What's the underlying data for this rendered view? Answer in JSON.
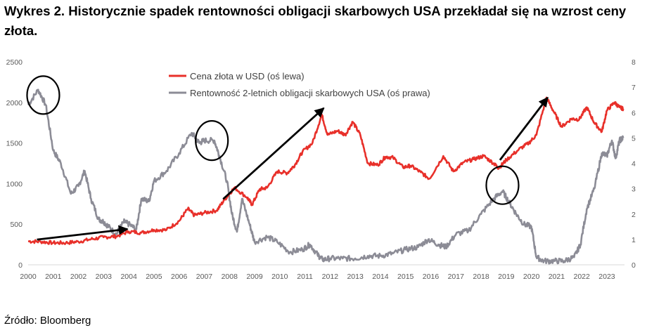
{
  "title": "Wykres 2. Historycznie spadek rentowności obligacji skarbowych USA przekładał się na wzrost ceny złota.",
  "source": "Źródło: Bloomberg",
  "colors": {
    "gold": "#e8302a",
    "yield": "#8c8c96",
    "annotation": "#000000"
  },
  "chart_data": {
    "type": "line",
    "x_ticks": [
      "2000",
      "2001",
      "2002",
      "2003",
      "2004",
      "2005",
      "2006",
      "2007",
      "2008",
      "2009",
      "2010",
      "2011",
      "2012",
      "2013",
      "2014",
      "2015",
      "2016",
      "2017",
      "2018",
      "2019",
      "2020",
      "2021",
      "2022",
      "2023"
    ],
    "y_left": {
      "ticks": [
        "0",
        "500",
        "1000",
        "1500",
        "2000",
        "2500"
      ],
      "lim": [
        0,
        2500
      ]
    },
    "y_right": {
      "ticks": [
        "0",
        "1",
        "2",
        "3",
        "4",
        "5",
        "6",
        "7",
        "8"
      ],
      "lim": [
        0,
        8
      ]
    },
    "legend_position": "top-center",
    "series": [
      {
        "name": "Cena złota w USD (oś lewa)",
        "axis": "left",
        "color": "#e8302a",
        "points": [
          [
            2000.0,
            290
          ],
          [
            2000.5,
            285
          ],
          [
            2001.0,
            270
          ],
          [
            2001.5,
            270
          ],
          [
            2002.0,
            285
          ],
          [
            2002.5,
            315
          ],
          [
            2003.0,
            340
          ],
          [
            2003.5,
            350
          ],
          [
            2004.0,
            410
          ],
          [
            2004.5,
            395
          ],
          [
            2005.0,
            430
          ],
          [
            2005.5,
            430
          ],
          [
            2006.0,
            540
          ],
          [
            2006.35,
            690
          ],
          [
            2006.6,
            610
          ],
          [
            2007.0,
            640
          ],
          [
            2007.5,
            670
          ],
          [
            2007.8,
            800
          ],
          [
            2008.2,
            950
          ],
          [
            2008.7,
            830
          ],
          [
            2008.9,
            740
          ],
          [
            2009.2,
            930
          ],
          [
            2009.5,
            950
          ],
          [
            2009.9,
            1150
          ],
          [
            2010.3,
            1130
          ],
          [
            2010.6,
            1230
          ],
          [
            2010.9,
            1390
          ],
          [
            2011.3,
            1500
          ],
          [
            2011.67,
            1850
          ],
          [
            2011.9,
            1600
          ],
          [
            2012.3,
            1650
          ],
          [
            2012.6,
            1600
          ],
          [
            2012.9,
            1760
          ],
          [
            2013.2,
            1600
          ],
          [
            2013.5,
            1250
          ],
          [
            2013.9,
            1230
          ],
          [
            2014.2,
            1330
          ],
          [
            2014.5,
            1320
          ],
          [
            2014.9,
            1200
          ],
          [
            2015.2,
            1220
          ],
          [
            2015.6,
            1140
          ],
          [
            2015.95,
            1060
          ],
          [
            2016.5,
            1340
          ],
          [
            2016.9,
            1150
          ],
          [
            2017.3,
            1260
          ],
          [
            2017.7,
            1300
          ],
          [
            2018.1,
            1340
          ],
          [
            2018.5,
            1250
          ],
          [
            2018.7,
            1190
          ],
          [
            2019.0,
            1290
          ],
          [
            2019.5,
            1420
          ],
          [
            2019.9,
            1500
          ],
          [
            2020.2,
            1600
          ],
          [
            2020.6,
            2060
          ],
          [
            2020.9,
            1880
          ],
          [
            2021.2,
            1700
          ],
          [
            2021.6,
            1800
          ],
          [
            2021.9,
            1790
          ],
          [
            2022.2,
            1940
          ],
          [
            2022.5,
            1750
          ],
          [
            2022.8,
            1640
          ],
          [
            2023.0,
            1900
          ],
          [
            2023.3,
            2000
          ],
          [
            2023.5,
            1940
          ],
          [
            2023.65,
            1920
          ]
        ]
      },
      {
        "name": "Rentowność 2-letnich obligacji skarbowych USA (oś prawa)",
        "axis": "right",
        "color": "#8c8c96",
        "points": [
          [
            2000.0,
            6.3
          ],
          [
            2000.4,
            6.9
          ],
          [
            2000.7,
            6.3
          ],
          [
            2001.0,
            4.5
          ],
          [
            2001.3,
            4.0
          ],
          [
            2001.7,
            2.8
          ],
          [
            2002.0,
            3.1
          ],
          [
            2002.25,
            3.7
          ],
          [
            2002.5,
            2.6
          ],
          [
            2002.8,
            1.8
          ],
          [
            2003.0,
            1.7
          ],
          [
            2003.2,
            1.5
          ],
          [
            2003.5,
            1.2
          ],
          [
            2003.8,
            1.7
          ],
          [
            2004.0,
            1.6
          ],
          [
            2004.3,
            1.4
          ],
          [
            2004.5,
            2.6
          ],
          [
            2004.8,
            2.5
          ],
          [
            2005.0,
            3.3
          ],
          [
            2005.5,
            3.7
          ],
          [
            2006.0,
            4.4
          ],
          [
            2006.5,
            5.2
          ],
          [
            2006.8,
            4.8
          ],
          [
            2007.0,
            4.9
          ],
          [
            2007.4,
            4.9
          ],
          [
            2007.6,
            4.3
          ],
          [
            2007.9,
            3.3
          ],
          [
            2008.1,
            2.0
          ],
          [
            2008.3,
            1.3
          ],
          [
            2008.5,
            2.6
          ],
          [
            2008.8,
            1.6
          ],
          [
            2009.0,
            0.9
          ],
          [
            2009.5,
            1.1
          ],
          [
            2009.9,
            0.9
          ],
          [
            2010.4,
            0.5
          ],
          [
            2010.9,
            0.6
          ],
          [
            2011.2,
            0.8
          ],
          [
            2011.5,
            0.4
          ],
          [
            2011.7,
            0.2
          ],
          [
            2012.0,
            0.25
          ],
          [
            2012.5,
            0.25
          ],
          [
            2013.0,
            0.25
          ],
          [
            2013.5,
            0.35
          ],
          [
            2014.0,
            0.35
          ],
          [
            2014.5,
            0.45
          ],
          [
            2015.0,
            0.6
          ],
          [
            2015.5,
            0.7
          ],
          [
            2015.9,
            1.0
          ],
          [
            2016.3,
            0.8
          ],
          [
            2016.6,
            0.7
          ],
          [
            2017.0,
            1.2
          ],
          [
            2017.5,
            1.35
          ],
          [
            2018.0,
            2.0
          ],
          [
            2018.5,
            2.6
          ],
          [
            2018.85,
            2.9
          ],
          [
            2019.1,
            2.5
          ],
          [
            2019.4,
            2.0
          ],
          [
            2019.7,
            1.6
          ],
          [
            2020.0,
            1.5
          ],
          [
            2020.2,
            0.3
          ],
          [
            2020.5,
            0.15
          ],
          [
            2020.9,
            0.15
          ],
          [
            2021.3,
            0.15
          ],
          [
            2021.7,
            0.3
          ],
          [
            2021.95,
            0.8
          ],
          [
            2022.2,
            2.2
          ],
          [
            2022.5,
            3.0
          ],
          [
            2022.8,
            4.4
          ],
          [
            2023.0,
            4.3
          ],
          [
            2023.2,
            4.9
          ],
          [
            2023.35,
            4.2
          ],
          [
            2023.5,
            4.9
          ],
          [
            2023.65,
            5.0
          ]
        ]
      }
    ],
    "annotations": {
      "arrows": [
        {
          "from": [
            2000.35,
            310
          ],
          "to": [
            2003.95,
            440
          ]
        },
        {
          "from": [
            2007.75,
            810
          ],
          "to": [
            2011.75,
            1930
          ]
        },
        {
          "from": [
            2018.75,
            1290
          ],
          "to": [
            2020.65,
            2060
          ]
        }
      ],
      "ellipses": [
        {
          "center": [
            2000.6,
            2090
          ]
        },
        {
          "center": [
            2007.3,
            1530
          ]
        },
        {
          "center": [
            2018.85,
            980
          ]
        }
      ]
    }
  }
}
